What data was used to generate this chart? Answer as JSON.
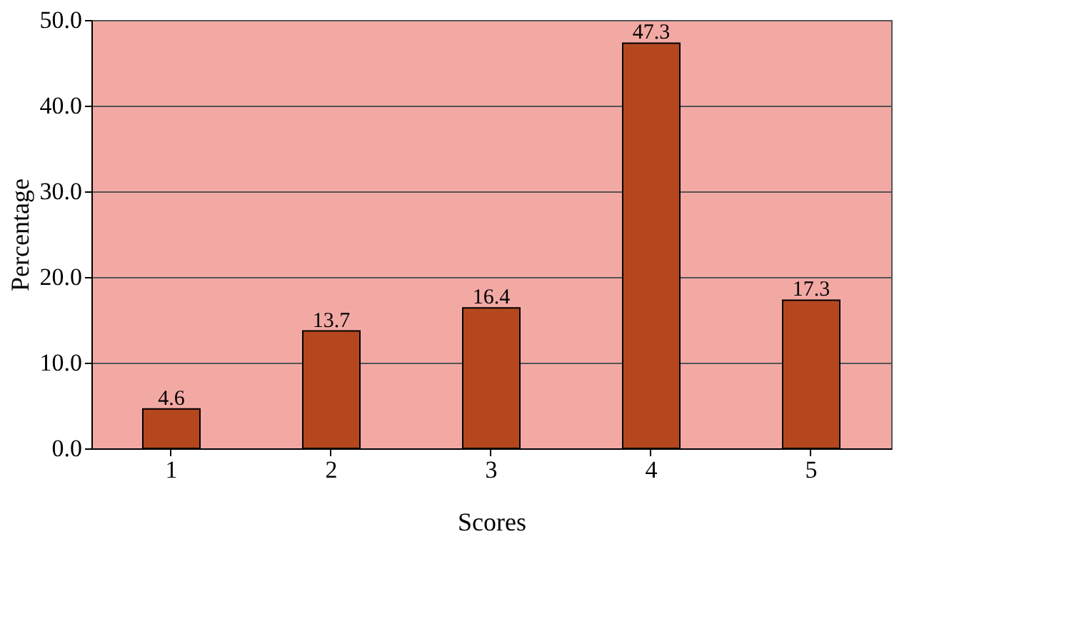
{
  "chart_data": {
    "type": "bar",
    "xlabel": "Scores",
    "ylabel": "Percentage",
    "categories": [
      "1",
      "2",
      "3",
      "4",
      "5"
    ],
    "values": [
      4.6,
      13.7,
      16.4,
      47.3,
      17.3
    ],
    "color": "#b5471f",
    "data_labels": true,
    "grid": "y",
    "ylim": [
      0,
      50
    ],
    "yticks": [
      {
        "value": 0,
        "label": "0.0"
      },
      {
        "value": 10,
        "label": "10.0"
      },
      {
        "value": 20,
        "label": "20.0"
      },
      {
        "value": 30,
        "label": "30.0"
      },
      {
        "value": 40,
        "label": "40.0"
      },
      {
        "value": 50,
        "label": "50.0"
      }
    ]
  }
}
